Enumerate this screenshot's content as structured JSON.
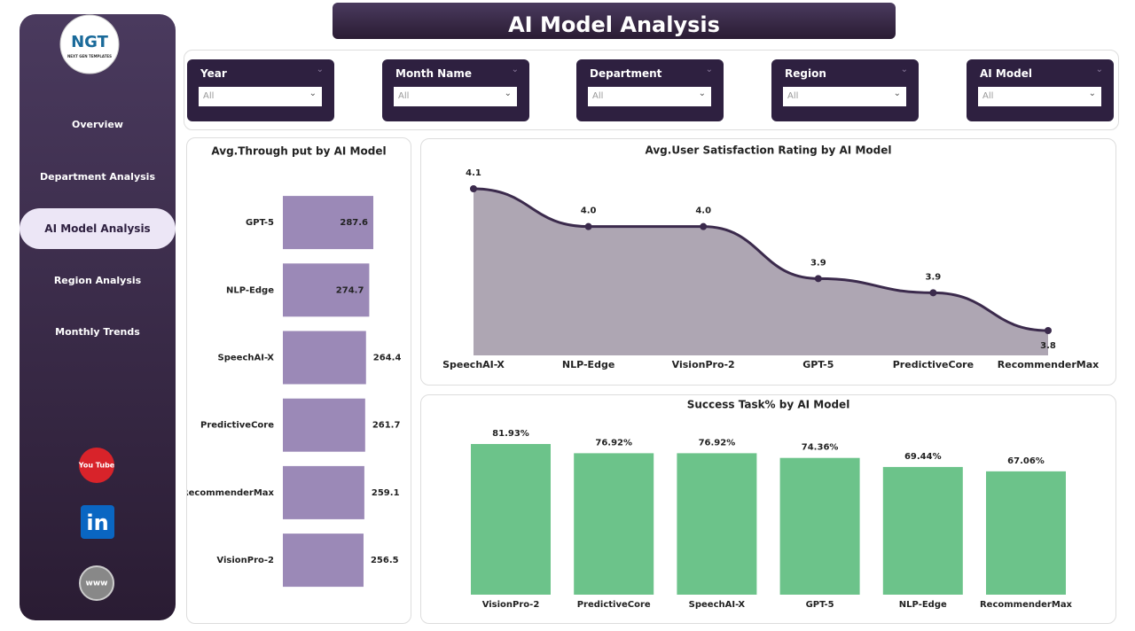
{
  "header": {
    "title": "AI Model Analysis"
  },
  "logo": {
    "mark": "NGT",
    "tagline": "NEXT GEN TEMPLATES"
  },
  "nav": {
    "items": [
      "Overview",
      "Department Analysis",
      "AI Model Analysis",
      "Region Analysis",
      "Monthly Trends"
    ]
  },
  "social": {
    "youtube": "You Tube",
    "linkedin": "in",
    "web": "www"
  },
  "filters": [
    {
      "label": "Year",
      "value": "All"
    },
    {
      "label": "Month Name",
      "value": "All"
    },
    {
      "label": "Department",
      "value": "All"
    },
    {
      "label": "Region",
      "value": "All"
    },
    {
      "label": "AI Model",
      "value": "All"
    }
  ],
  "chart_data": [
    {
      "type": "hbar",
      "title": "Avg.Through put by AI Model",
      "categories": [
        "GPT-5",
        "NLP-Edge",
        "SpeechAI-X",
        "PredictiveCore",
        "RecommenderMax",
        "VisionPro-2"
      ],
      "values": [
        287.6,
        274.7,
        264.4,
        261.7,
        259.1,
        256.5
      ],
      "color": "#9b89b7"
    },
    {
      "type": "area",
      "title": "Avg.User Satisfaction Rating by AI Model",
      "categories": [
        "SpeechAI-X",
        "NLP-Edge",
        "VisionPro-2",
        "GPT-5",
        "PredictiveCore",
        "RecommenderMax"
      ],
      "values": [
        4.12,
        4.04,
        4.04,
        3.93,
        3.9,
        3.82
      ],
      "value_labels": [
        "4.1",
        "4.0",
        "4.0",
        "3.9",
        "3.9",
        "3.8"
      ],
      "color": "#3b2a4c",
      "fill": "#aea6b3"
    },
    {
      "type": "bar",
      "title": "Success Task% by AI Model",
      "categories": [
        "VisionPro-2",
        "PredictiveCore",
        "SpeechAI-X",
        "GPT-5",
        "NLP-Edge",
        "RecommenderMax"
      ],
      "values": [
        81.93,
        76.92,
        76.92,
        74.36,
        69.44,
        67.06
      ],
      "value_labels": [
        "81.93%",
        "76.92%",
        "76.92%",
        "74.36%",
        "69.44%",
        "67.06%"
      ],
      "color": "#6cc38a"
    }
  ]
}
